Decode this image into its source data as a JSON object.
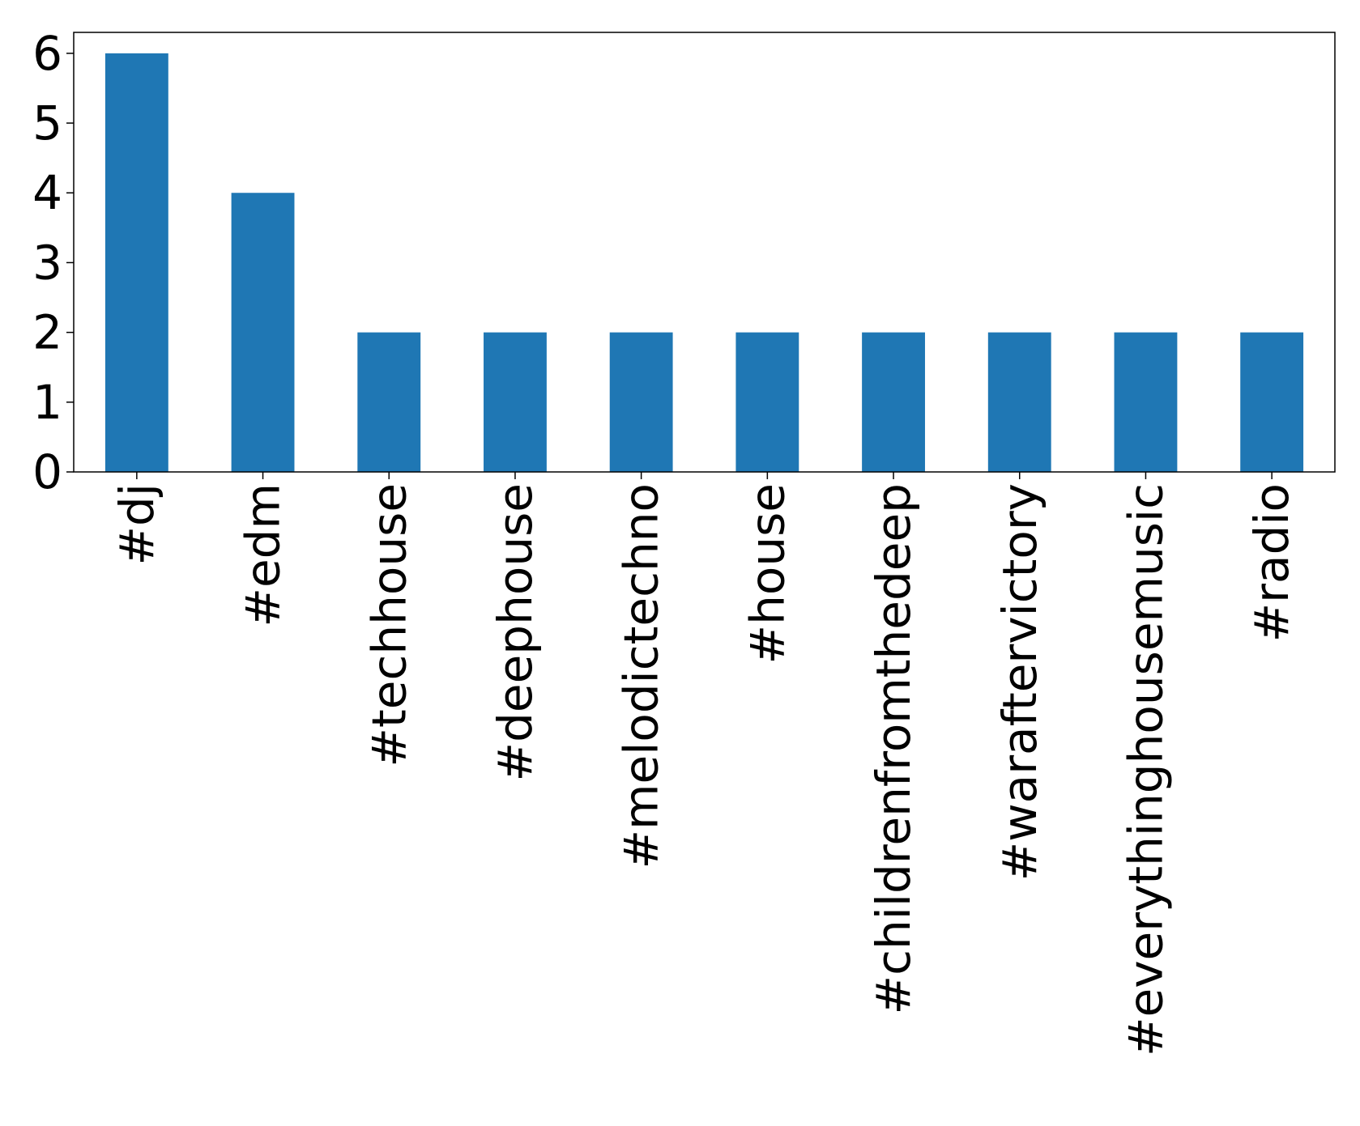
{
  "chart_data": {
    "type": "bar",
    "categories": [
      "#dj",
      "#edm",
      "#techhouse",
      "#deephouse",
      "#melodictechno",
      "#house",
      "#childrenfromthedeep",
      "#waraftervictory",
      "#everythinghousemusic",
      "#radio"
    ],
    "values": [
      6,
      4,
      2,
      2,
      2,
      2,
      2,
      2,
      2,
      2
    ],
    "yticks": [
      "0",
      "1",
      "2",
      "3",
      "4",
      "5",
      "6"
    ],
    "ylim": [
      0,
      6.3
    ],
    "x_tick_rotation": "vertical",
    "bar_color": "#1f77b4",
    "grid": false,
    "legend": false,
    "title": "",
    "xlabel": "",
    "ylabel": ""
  }
}
